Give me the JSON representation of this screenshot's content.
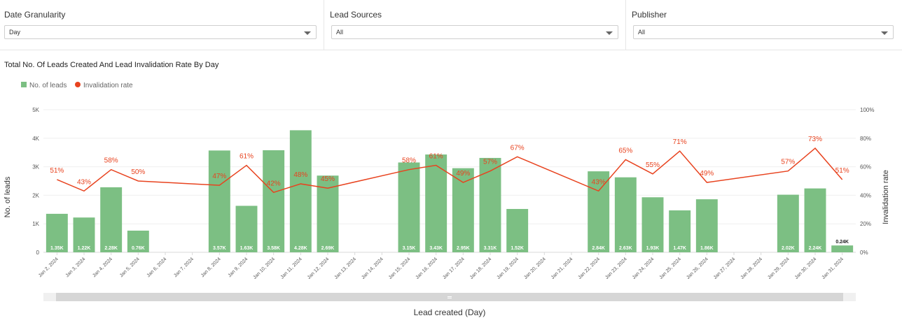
{
  "filters": [
    {
      "label": "Date Granularity",
      "value": "Day"
    },
    {
      "label": "Lead Sources",
      "value": "All"
    },
    {
      "label": "Publisher",
      "value": "All"
    }
  ],
  "chart_data": {
    "type": "bar",
    "title": "Total No. Of Leads Created And Lead Invalidation Rate By Day",
    "xlabel": "Lead created (Day)",
    "ylabel": "No. of leads",
    "y2label": "Invalidation rate",
    "ylim": [
      0,
      5000
    ],
    "y2lim": [
      0,
      100
    ],
    "yticks": [
      "0",
      "1K",
      "2K",
      "3K",
      "4K",
      "5K"
    ],
    "y2ticks": [
      "0%",
      "20%",
      "40%",
      "60%",
      "80%",
      "100%"
    ],
    "grid": true,
    "legend_position": "top-left",
    "colors": {
      "bar": "#7cbf83",
      "line": "#e8431f"
    },
    "categories": [
      "Jan 2, 2024",
      "Jan 3, 2024",
      "Jan 4, 2024",
      "Jan 5, 2024",
      "Jan 6, 2024",
      "Jan 7, 2024",
      "Jan 8, 2024",
      "Jan 9, 2024",
      "Jan 10, 2024",
      "Jan 11, 2024",
      "Jan 12, 2024",
      "Jan 13, 2024",
      "Jan 14, 2024",
      "Jan 15, 2024",
      "Jan 16, 2024",
      "Jan 17, 2024",
      "Jan 18, 2024",
      "Jan 19, 2024",
      "Jan 20, 2024",
      "Jan 21, 2024",
      "Jan 22, 2024",
      "Jan 23, 2024",
      "Jan 24, 2024",
      "Jan 25, 2024",
      "Jan 26, 2024",
      "Jan 27, 2024",
      "Jan 28, 2024",
      "Jan 29, 2024",
      "Jan 30, 2024",
      "Jan 31, 2024"
    ],
    "series": [
      {
        "name": "No. of leads",
        "type": "bar",
        "values": [
          1350,
          1220,
          2280,
          760,
          null,
          null,
          3570,
          1630,
          3580,
          4280,
          2690,
          null,
          null,
          3150,
          3430,
          2950,
          3310,
          1520,
          null,
          null,
          2840,
          2630,
          1930,
          1470,
          1860,
          null,
          null,
          2020,
          2240,
          240
        ],
        "labels": [
          "1.35K",
          "1.22K",
          "2.28K",
          "0.76K",
          "",
          "",
          "3.57K",
          "1.63K",
          "3.58K",
          "4.28K",
          "2.69K",
          "",
          "",
          "3.15K",
          "3.43K",
          "2.95K",
          "3.31K",
          "1.52K",
          "",
          "",
          "2.84K",
          "2.63K",
          "1.93K",
          "1.47K",
          "1.86K",
          "",
          "",
          "2.02K",
          "2.24K",
          "0.24K"
        ]
      },
      {
        "name": "Invalidation rate",
        "type": "line",
        "values": [
          51,
          43,
          58,
          50,
          null,
          null,
          47,
          61,
          42,
          48,
          45,
          null,
          null,
          58,
          61,
          49,
          57,
          67,
          null,
          null,
          43,
          65,
          55,
          71,
          49,
          null,
          null,
          57,
          73,
          51
        ],
        "labels": [
          "51%",
          "43%",
          "58%",
          "50%",
          "",
          "",
          "47%",
          "61%",
          "42%",
          "48%",
          "45%",
          "",
          "",
          "58%",
          "61%",
          "49%",
          "57%",
          "67%",
          "",
          "",
          "43%",
          "65%",
          "55%",
          "71%",
          "49%",
          "",
          "",
          "57%",
          "73%",
          "51%"
        ]
      }
    ]
  }
}
